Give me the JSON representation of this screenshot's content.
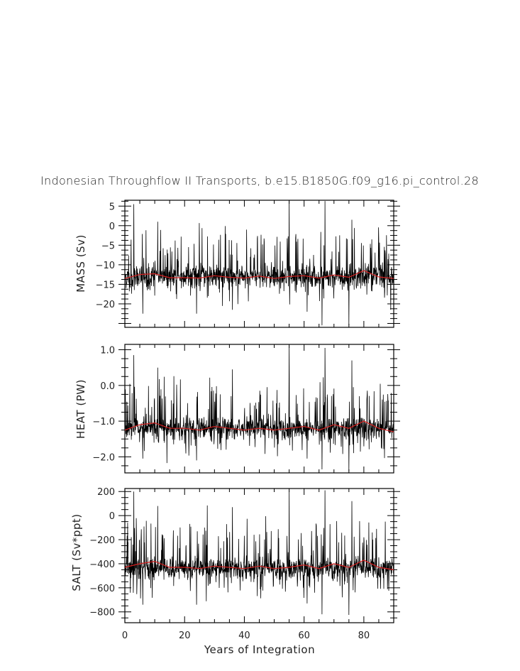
{
  "figure": {
    "title": "Indonesian Throughflow II Transports, b.e15.B1850G.f09_g16.pi_control.28",
    "xlabel": "Years of Integration",
    "colors": {
      "raw": "#000000",
      "running_mean": "#d62020"
    }
  },
  "chart_data": [
    {
      "type": "line",
      "ylabel": "MASS (Sv)",
      "xlim": [
        0,
        90
      ],
      "ylim": [
        -26,
        6.5
      ],
      "xticks": [
        0,
        20,
        40,
        60,
        80
      ],
      "yticks": [
        5,
        0,
        -5,
        -10,
        -15,
        -20
      ],
      "yticklabels": [
        "5",
        "0",
        "−5",
        "−10",
        "−15",
        "−20"
      ],
      "baseline": -13,
      "spread": 3.2,
      "series": [
        {
          "kind": "monthly",
          "x_start": 0,
          "x_end": 90,
          "peaks": [
            [
              3,
              5.5
            ],
            [
              55,
              6.5
            ],
            [
              67,
              6.3
            ],
            [
              11,
              1
            ],
            [
              36,
              1
            ],
            [
              76,
              1.5
            ]
          ],
          "troughs": [
            [
              66,
              -25.5
            ],
            [
              75,
              -25.5
            ],
            [
              6,
              -22.5
            ],
            [
              24,
              -22.5
            ],
            [
              36,
              -21.5
            ],
            [
              61,
              -22
            ],
            [
              89,
              -21.5
            ]
          ]
        },
        {
          "kind": "running_mean",
          "x": [
            0,
            5,
            10,
            15,
            20,
            25,
            30,
            35,
            40,
            45,
            50,
            55,
            60,
            65,
            70,
            75,
            80,
            85,
            90
          ],
          "values": [
            -13.5,
            -12.5,
            -12.3,
            -13.3,
            -13.3,
            -13.4,
            -12.8,
            -13.2,
            -13.4,
            -12.9,
            -13.5,
            -13.0,
            -12.8,
            -13.4,
            -12.6,
            -13.2,
            -11.5,
            -13.1,
            -13.5
          ]
        }
      ]
    },
    {
      "type": "line",
      "ylabel": "HEAT (PW)",
      "xlim": [
        0,
        90
      ],
      "ylim": [
        -2.45,
        1.15
      ],
      "xticks": [
        0,
        20,
        40,
        60,
        80
      ],
      "yticks": [
        1.0,
        0.0,
        -1.0,
        -2.0
      ],
      "yticklabels": [
        "1.0",
        "0.0",
        "−1.0",
        "−2.0"
      ],
      "baseline": -1.2,
      "spread": 0.33,
      "series": [
        {
          "kind": "monthly",
          "x_start": 0,
          "x_end": 90,
          "peaks": [
            [
              3,
              0.85
            ],
            [
              55,
              1.1
            ],
            [
              67,
              1.05
            ],
            [
              11,
              0.5
            ],
            [
              36,
              0.45
            ],
            [
              76,
              0.7
            ]
          ],
          "troughs": [
            [
              66,
              -2.35
            ],
            [
              75,
              -2.4
            ],
            [
              6,
              -2.05
            ],
            [
              24,
              -2.1
            ],
            [
              61,
              -2.05
            ]
          ]
        },
        {
          "kind": "running_mean",
          "x": [
            0,
            5,
            10,
            15,
            20,
            25,
            30,
            35,
            40,
            45,
            50,
            55,
            60,
            65,
            70,
            75,
            80,
            85,
            90
          ],
          "values": [
            -1.25,
            -1.1,
            -1.05,
            -1.2,
            -1.2,
            -1.25,
            -1.15,
            -1.2,
            -1.25,
            -1.2,
            -1.25,
            -1.2,
            -1.15,
            -1.25,
            -1.1,
            -1.2,
            -1.0,
            -1.2,
            -1.3
          ]
        }
      ]
    },
    {
      "type": "line",
      "ylabel": "SALT (Sv*ppt)",
      "xlim": [
        0,
        90
      ],
      "ylim": [
        -890,
        225
      ],
      "xticks": [
        0,
        20,
        40,
        60,
        80
      ],
      "yticks": [
        200,
        0,
        -200,
        -400,
        -600,
        -800
      ],
      "yticklabels": [
        "200",
        "0",
        "−200",
        "−400",
        "−600",
        "−800"
      ],
      "baseline": -440,
      "spread": 105,
      "series": [
        {
          "kind": "monthly",
          "x_start": 0,
          "x_end": 90,
          "peaks": [
            [
              3,
              200
            ],
            [
              55,
              210
            ],
            [
              67,
              210
            ],
            [
              11,
              80
            ],
            [
              36,
              70
            ],
            [
              76,
              120
            ]
          ],
          "troughs": [
            [
              66,
              -820
            ],
            [
              75,
              -825
            ],
            [
              6,
              -740
            ],
            [
              24,
              -740
            ],
            [
              61,
              -730
            ]
          ]
        },
        {
          "kind": "running_mean",
          "x": [
            0,
            5,
            10,
            15,
            20,
            25,
            30,
            35,
            40,
            45,
            50,
            55,
            60,
            65,
            70,
            75,
            80,
            85,
            90
          ],
          "values": [
            -430,
            -400,
            -380,
            -430,
            -430,
            -440,
            -420,
            -430,
            -440,
            -420,
            -440,
            -430,
            -410,
            -440,
            -400,
            -430,
            -370,
            -430,
            -450
          ]
        }
      ]
    }
  ]
}
